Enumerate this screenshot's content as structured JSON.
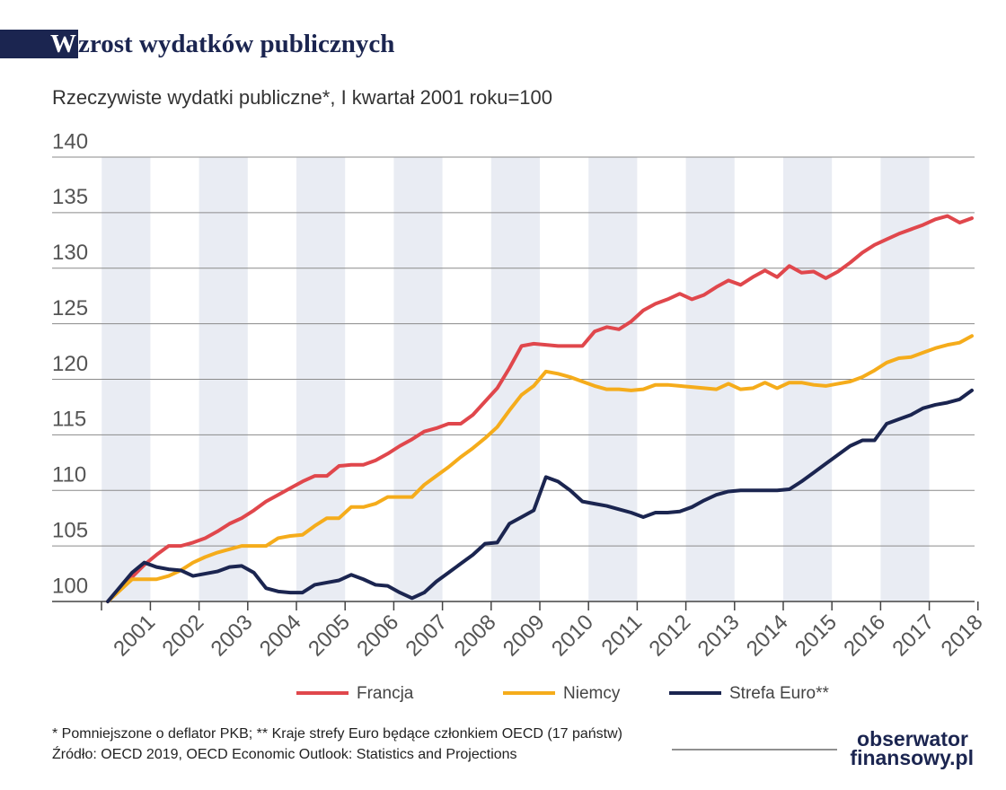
{
  "chart_data": {
    "type": "line",
    "title": "Wzrost wydatków publicznych",
    "subtitle": "Rzeczywiste wydatki publiczne*, I kwartał 2001 roku=100",
    "categories": [
      "2001",
      null,
      null,
      null,
      "2002",
      null,
      null,
      null,
      "2003",
      null,
      null,
      null,
      "2004",
      null,
      null,
      null,
      "2005",
      null,
      null,
      null,
      "2006",
      null,
      null,
      null,
      "2007",
      null,
      null,
      null,
      "2008",
      null,
      null,
      null,
      "2009",
      null,
      null,
      null,
      "2010",
      null,
      null,
      null,
      "2011",
      null,
      null,
      null,
      "2012",
      null,
      null,
      null,
      "2013",
      null,
      null,
      null,
      "2014",
      null,
      null,
      null,
      "2015",
      null,
      null,
      null,
      "2016",
      null,
      null,
      null,
      "2017",
      null,
      null,
      null,
      "2018",
      null,
      null,
      null
    ],
    "series": [
      {
        "name": "Francja",
        "color": "#e0474c",
        "values": [
          100,
          101.1,
          102.2,
          103.3,
          104.2,
          105,
          105,
          105.3,
          105.7,
          106.3,
          107,
          107.5,
          108.2,
          109,
          109.6,
          110.2,
          110.8,
          111.3,
          111.3,
          112.2,
          112.3,
          112.3,
          112.7,
          113.3,
          114,
          114.6,
          115.3,
          115.6,
          116,
          116,
          116.8,
          118,
          119.2,
          121,
          123,
          123.2,
          123.1,
          123,
          123,
          123,
          124.3,
          124.7,
          124.5,
          125.2,
          126.2,
          126.8,
          127.2,
          127.7,
          127.2,
          127.6,
          128.3,
          128.9,
          128.5,
          129.2,
          129.8,
          129.2,
          130.2,
          129.6,
          129.7,
          129.1,
          129.7,
          130.5,
          131.4,
          132.1,
          132.6,
          133.1,
          133.5,
          133.9,
          134.4,
          134.7,
          134.1,
          134.5
        ]
      },
      {
        "name": "Niemcy",
        "color": "#f5ac1b",
        "values": [
          100,
          101,
          102,
          102,
          102,
          102.3,
          102.8,
          103.5,
          104,
          104.4,
          104.7,
          105,
          105,
          105,
          105.7,
          105.9,
          106,
          106.8,
          107.5,
          107.5,
          108.5,
          108.5,
          108.8,
          109.4,
          109.4,
          109.4,
          110.5,
          111.3,
          112.1,
          113,
          113.8,
          114.7,
          115.7,
          117.2,
          118.6,
          119.4,
          120.7,
          120.5,
          120.2,
          119.8,
          119.4,
          119.1,
          119.1,
          119,
          119.1,
          119.5,
          119.5,
          119.4,
          119.3,
          119.2,
          119.1,
          119.6,
          119.1,
          119.2,
          119.7,
          119.2,
          119.7,
          119.7,
          119.5,
          119.4,
          119.6,
          119.8,
          120.2,
          120.8,
          121.5,
          121.9,
          122,
          122.4,
          122.8,
          123.1,
          123.3,
          123.9
        ]
      },
      {
        "name": "Strefa Euro**",
        "color": "#1b2550",
        "values": [
          100,
          101.3,
          102.6,
          103.5,
          103.1,
          102.9,
          102.8,
          102.3,
          102.5,
          102.7,
          103.1,
          103.2,
          102.6,
          101.2,
          100.9,
          100.8,
          100.8,
          101.5,
          101.7,
          101.9,
          102.4,
          102,
          101.5,
          101.4,
          100.8,
          100.3,
          100.8,
          101.8,
          102.6,
          103.4,
          104.2,
          105.2,
          105.3,
          107,
          107.6,
          108.2,
          111.2,
          110.8,
          110,
          109,
          108.8,
          108.6,
          108.3,
          108,
          107.6,
          108,
          108,
          108.1,
          108.5,
          109.1,
          109.6,
          109.9,
          110,
          110,
          110,
          110,
          110.1,
          110.8,
          111.6,
          112.4,
          113.2,
          114,
          114.5,
          114.5,
          116,
          116.4,
          116.8,
          117.4,
          117.7,
          117.9,
          118.2,
          119
        ]
      }
    ],
    "ylim": [
      100,
      140
    ],
    "yticks": [
      100,
      105,
      110,
      115,
      120,
      125,
      130,
      135,
      140
    ],
    "grid": true,
    "legend": "bottom",
    "footnote": "* Pomniejszone o deflator PKB;  ** Kraje strefy Euro będące członkiem OECD (17 państw)",
    "source": "Źródło: OECD 2019, OECD Economic Outlook: Statistics and Projections",
    "logo": [
      "obserwator",
      "finansowy.pl"
    ]
  }
}
